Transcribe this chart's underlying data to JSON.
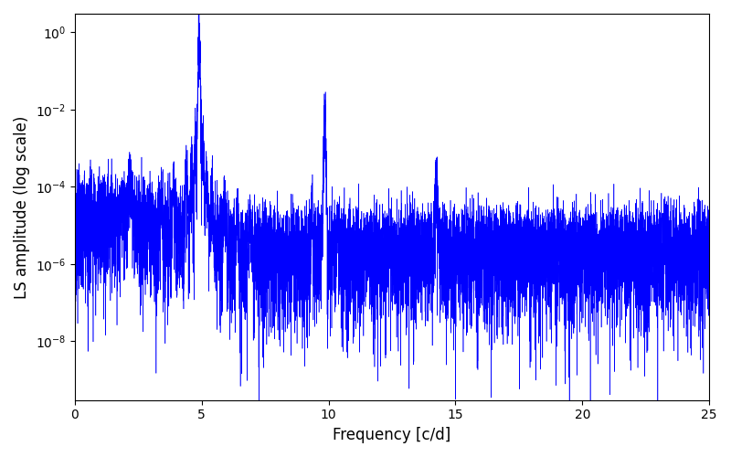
{
  "title": "",
  "xlabel": "Frequency [c/d]",
  "ylabel": "LS amplitude (log scale)",
  "xlim": [
    0,
    25
  ],
  "ylim_low": 3e-10,
  "ylim_high": 3.0,
  "line_color": "#0000FF",
  "linewidth": 0.4,
  "figsize": [
    8.0,
    5.0
  ],
  "dpi": 100,
  "main_peak_freq": 4.9,
  "main_peak_amp": 1.0,
  "secondary_peak_freq": 9.85,
  "secondary_peak_amp": 0.008,
  "tertiary_peak_freq": 14.25,
  "tertiary_peak_amp": 0.0003,
  "alias_peak_freq": 2.2,
  "alias_peak_amp": 0.00025,
  "num_points": 10000,
  "seed": 42
}
